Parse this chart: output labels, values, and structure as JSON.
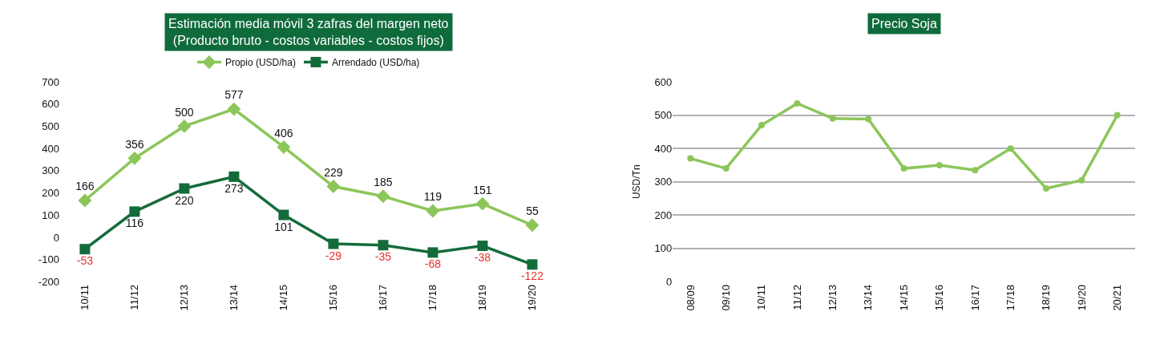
{
  "chart_data": [
    {
      "type": "line",
      "title": "Estimación media móvil 3 zafras del margen neto\n(Producto bruto - costos variables - costos fijos)",
      "categories": [
        "10/11",
        "11/12",
        "12/13",
        "13/14",
        "14/15",
        "15/16",
        "16/17",
        "17/18",
        "18/19",
        "19/20"
      ],
      "series": [
        {
          "name": "Propio (USD/ha)",
          "color": "#8cc65a",
          "marker": "diamond",
          "values": [
            166,
            356,
            500,
            577,
            406,
            229,
            185,
            119,
            151,
            55
          ]
        },
        {
          "name": "Arrendado (USD/ha)",
          "color": "#146b3a",
          "marker": "square",
          "values": [
            -53,
            116,
            220,
            273,
            101,
            -29,
            -35,
            -68,
            -38,
            -122
          ]
        }
      ],
      "ylim": [
        -200,
        700
      ],
      "yticks": [
        -200,
        -100,
        0,
        100,
        200,
        300,
        400,
        500,
        600,
        700
      ],
      "data_labels": true,
      "grid": false,
      "legend": "top",
      "line_style": "solid"
    },
    {
      "type": "line",
      "title": "Precio Soja",
      "ylabel": "USD/Tn",
      "categories": [
        "08/09",
        "09/10",
        "10/11",
        "11/12",
        "12/13",
        "13/14",
        "14/15",
        "15/16",
        "16/17",
        "17/18",
        "18/19",
        "19/20",
        "20/21"
      ],
      "series": [
        {
          "color": "#8cc65a",
          "values": [
            370,
            340,
            470,
            535,
            490,
            488,
            340,
            350,
            335,
            400,
            280,
            305,
            500
          ]
        }
      ],
      "ylim": [
        0,
        600
      ],
      "yticks": [
        0,
        100,
        200,
        300,
        400,
        500,
        600
      ],
      "grid": "y",
      "legend": false,
      "marker": "circle",
      "line_style": "solid"
    }
  ]
}
